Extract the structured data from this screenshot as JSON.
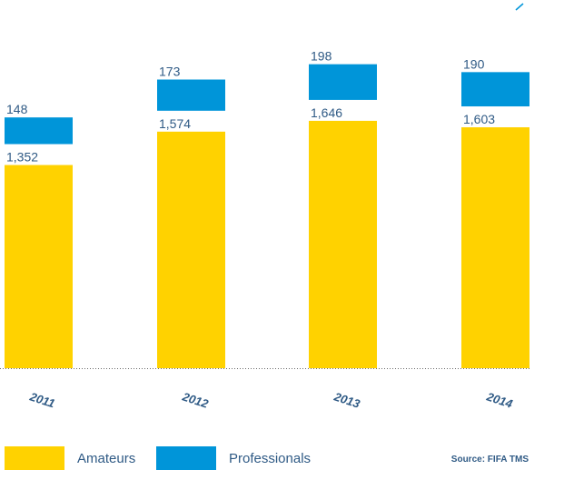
{
  "chart_data": {
    "type": "bar",
    "stacked": true,
    "categories": [
      "2011",
      "2012",
      "2013",
      "2014"
    ],
    "series": [
      {
        "name": "Amateurs",
        "values": [
          1352,
          1574,
          1646,
          1603
        ],
        "labels": [
          "1,352",
          "1,574",
          "1,646",
          "1,603"
        ],
        "color": "#ffd200"
      },
      {
        "name": "Professionals",
        "values": [
          148,
          173,
          198,
          190
        ],
        "labels": [
          "148",
          "173",
          "198",
          "190"
        ],
        "color": "#0095d9"
      }
    ],
    "ylim": [
      0,
      2000
    ],
    "grid": false,
    "legend_placement": "bottom-left",
    "source": "Source: FIFA TMS"
  },
  "colors": {
    "text": "#2f5a85",
    "baseline": "#6b6b6b"
  }
}
